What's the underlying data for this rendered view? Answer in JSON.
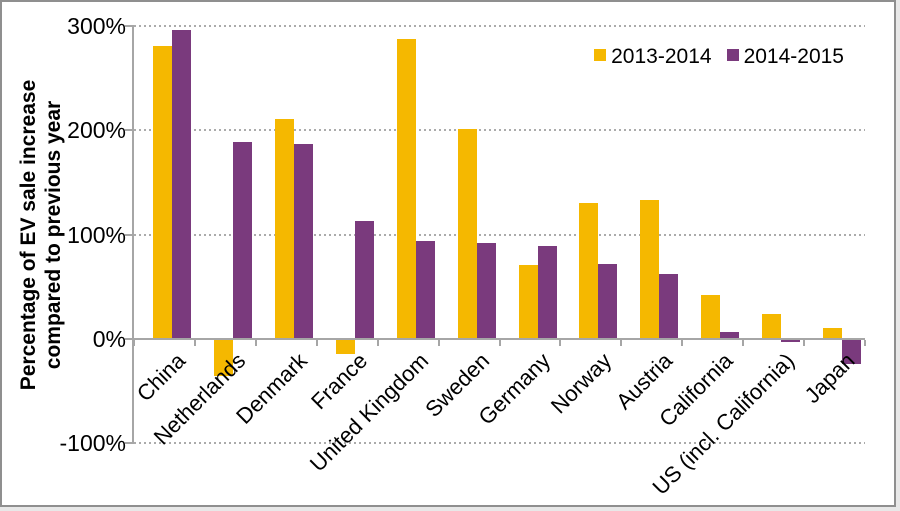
{
  "chart_data": {
    "type": "bar",
    "title": "",
    "ylabel_lines": [
      "Percentage of EV sale increase",
      "compared to previous year"
    ],
    "xlabel": "",
    "categories": [
      "China",
      "Netherlands",
      "Denmark",
      "France",
      "United Kingdom",
      "Sweden",
      "Germany",
      "Norway",
      "Austria",
      "California",
      "US (incl. California)",
      "Japan"
    ],
    "series": [
      {
        "name": "2013-2014",
        "color": "#F5B800",
        "values": [
          281,
          -35,
          211,
          -14,
          288,
          201,
          71,
          130,
          133,
          42,
          24,
          10
        ]
      },
      {
        "name": "2014-2015",
        "color": "#7A3A7D",
        "values": [
          296,
          189,
          187,
          113,
          94,
          92,
          89,
          72,
          62,
          6,
          -2,
          -23
        ]
      }
    ],
    "ylim": [
      -100,
      300
    ],
    "y_ticks": [
      {
        "label": "300%",
        "value": 300
      },
      {
        "label": "200%",
        "value": 200
      },
      {
        "label": "100%",
        "value": 100
      },
      {
        "label": "0%",
        "value": 0
      },
      {
        "label": "-100%",
        "value": -100
      }
    ],
    "grid": "dotted horizontal lines at 100% intervals (none at 0%)",
    "legend_position": "top-right"
  }
}
